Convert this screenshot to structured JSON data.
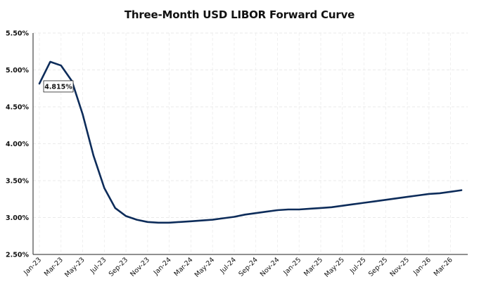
{
  "chart_data": {
    "type": "line",
    "title": "Three-Month USD LIBOR Forward Curve",
    "xlabel": "",
    "ylabel": "",
    "ylim": [
      2.5,
      5.5
    ],
    "yticks": [
      "2.50%",
      "3.00%",
      "3.50%",
      "4.00%",
      "4.50%",
      "5.00%",
      "5.50%"
    ],
    "xticks": [
      "Jan-23",
      "Mar-23",
      "May-23",
      "Jul-23",
      "Sep-23",
      "Nov-23",
      "Jan-24",
      "Mar-24",
      "May-24",
      "Jul-24",
      "Sep-24",
      "Nov-24",
      "Jan-25",
      "Mar-25",
      "May-25",
      "Jul-25",
      "Sep-25",
      "Nov-25",
      "Jan-26",
      "Mar-26"
    ],
    "grid": true,
    "legend": "none",
    "line_color": "#0d2c5a",
    "series": [
      {
        "x": [
          "Jan-23",
          "Feb-23",
          "Mar-23",
          "Apr-23",
          "May-23",
          "Jun-23",
          "Jul-23",
          "Aug-23",
          "Sep-23",
          "Oct-23",
          "Nov-23",
          "Dec-23",
          "Jan-24",
          "Feb-24",
          "Mar-24",
          "Apr-24",
          "May-24",
          "Jun-24",
          "Jul-24",
          "Aug-24",
          "Sep-24",
          "Oct-24",
          "Nov-24",
          "Dec-24",
          "Jan-25",
          "Feb-25",
          "Mar-25",
          "Apr-25",
          "May-25",
          "Jun-25",
          "Jul-25",
          "Aug-25",
          "Sep-25",
          "Oct-25",
          "Nov-25",
          "Dec-25",
          "Jan-26",
          "Feb-26",
          "Mar-26",
          "Apr-26"
        ],
        "values": [
          4.815,
          5.11,
          5.06,
          4.85,
          4.4,
          3.84,
          3.4,
          3.13,
          3.02,
          2.97,
          2.94,
          2.93,
          2.93,
          2.94,
          2.95,
          2.96,
          2.97,
          2.99,
          3.01,
          3.04,
          3.06,
          3.08,
          3.1,
          3.11,
          3.11,
          3.12,
          3.13,
          3.14,
          3.16,
          3.18,
          3.2,
          3.22,
          3.24,
          3.26,
          3.28,
          3.3,
          3.32,
          3.33,
          3.35,
          3.37
        ]
      }
    ],
    "annotations": [
      {
        "x": "Jan-23",
        "y": 4.815,
        "text": "4.815%"
      }
    ]
  }
}
